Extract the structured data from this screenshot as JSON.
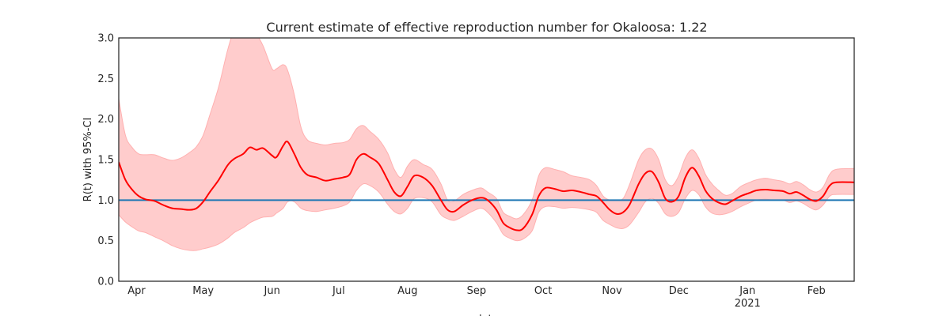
{
  "chart_data": {
    "type": "line",
    "title": "Current estimate of effective reproduction number for Okaloosa: 1.22",
    "ylabel": "R(t) with 95%-CI",
    "xlabel": "date",
    "ylim": [
      0,
      3.0
    ],
    "xlim": [
      "2020-03-24",
      "2021-02-18"
    ],
    "y_ticks": [
      {
        "value": 0.0,
        "label": "0.0"
      },
      {
        "value": 0.5,
        "label": "0.5"
      },
      {
        "value": 1.0,
        "label": "1.0"
      },
      {
        "value": 1.5,
        "label": "1.5"
      },
      {
        "value": 2.0,
        "label": "2.0"
      },
      {
        "value": 2.5,
        "label": "2.5"
      },
      {
        "value": 3.0,
        "label": "3.0"
      }
    ],
    "x_ticks": [
      {
        "date": "2020-04-01",
        "label": "Apr",
        "sublabel": ""
      },
      {
        "date": "2020-05-01",
        "label": "May",
        "sublabel": ""
      },
      {
        "date": "2020-06-01",
        "label": "Jun",
        "sublabel": ""
      },
      {
        "date": "2020-07-01",
        "label": "Jul",
        "sublabel": ""
      },
      {
        "date": "2020-08-01",
        "label": "Aug",
        "sublabel": ""
      },
      {
        "date": "2020-09-01",
        "label": "Sep",
        "sublabel": ""
      },
      {
        "date": "2020-10-01",
        "label": "Oct",
        "sublabel": ""
      },
      {
        "date": "2020-11-01",
        "label": "Nov",
        "sublabel": ""
      },
      {
        "date": "2020-12-01",
        "label": "Dec",
        "sublabel": ""
      },
      {
        "date": "2021-01-01",
        "label": "Jan",
        "sublabel": "2021"
      },
      {
        "date": "2021-02-01",
        "label": "Feb",
        "sublabel": ""
      }
    ],
    "reference_line": {
      "y": 1.0,
      "color": "#1f77b4"
    },
    "colors": {
      "line": "#ff0000",
      "band": "#ff9999",
      "band_edge": "#ffb0b0",
      "axes": "#262626"
    },
    "series": [
      {
        "name": "R(t)",
        "points": [
          [
            "2020-03-24",
            1.47,
            0.82,
            2.25
          ],
          [
            "2020-03-27",
            1.25,
            0.73,
            1.8
          ],
          [
            "2020-03-30",
            1.13,
            0.67,
            1.65
          ],
          [
            "2020-04-02",
            1.05,
            0.62,
            1.57
          ],
          [
            "2020-04-05",
            1.01,
            0.6,
            1.56
          ],
          [
            "2020-04-09",
            0.99,
            0.55,
            1.56
          ],
          [
            "2020-04-13",
            0.94,
            0.5,
            1.52
          ],
          [
            "2020-04-17",
            0.9,
            0.44,
            1.49
          ],
          [
            "2020-04-21",
            0.89,
            0.4,
            1.52
          ],
          [
            "2020-04-25",
            0.88,
            0.38,
            1.59
          ],
          [
            "2020-04-28",
            0.9,
            0.38,
            1.66
          ],
          [
            "2020-05-01",
            0.98,
            0.4,
            1.8
          ],
          [
            "2020-05-04",
            1.1,
            0.42,
            2.05
          ],
          [
            "2020-05-08",
            1.25,
            0.46,
            2.4
          ],
          [
            "2020-05-12",
            1.43,
            0.53,
            2.85
          ],
          [
            "2020-05-15",
            1.51,
            0.6,
            3.1
          ],
          [
            "2020-05-19",
            1.57,
            0.66,
            3.25
          ],
          [
            "2020-05-22",
            1.65,
            0.72,
            3.2
          ],
          [
            "2020-05-25",
            1.62,
            0.76,
            3.05
          ],
          [
            "2020-05-28",
            1.64,
            0.79,
            2.9
          ],
          [
            "2020-06-01",
            1.55,
            0.8,
            2.62
          ],
          [
            "2020-06-03",
            1.53,
            0.84,
            2.62
          ],
          [
            "2020-06-06",
            1.67,
            0.9,
            2.67
          ],
          [
            "2020-06-08",
            1.72,
            0.98,
            2.6
          ],
          [
            "2020-06-11",
            1.57,
            0.98,
            2.3
          ],
          [
            "2020-06-14",
            1.4,
            0.9,
            1.9
          ],
          [
            "2020-06-17",
            1.31,
            0.87,
            1.74
          ],
          [
            "2020-06-21",
            1.28,
            0.86,
            1.7
          ],
          [
            "2020-06-25",
            1.24,
            0.88,
            1.68
          ],
          [
            "2020-06-29",
            1.26,
            0.9,
            1.7
          ],
          [
            "2020-07-03",
            1.28,
            0.93,
            1.71
          ],
          [
            "2020-07-06",
            1.32,
            0.98,
            1.75
          ],
          [
            "2020-07-09",
            1.5,
            1.12,
            1.88
          ],
          [
            "2020-07-12",
            1.57,
            1.2,
            1.92
          ],
          [
            "2020-07-15",
            1.53,
            1.18,
            1.85
          ],
          [
            "2020-07-19",
            1.45,
            1.1,
            1.75
          ],
          [
            "2020-07-23",
            1.25,
            0.95,
            1.58
          ],
          [
            "2020-07-26",
            1.1,
            0.86,
            1.38
          ],
          [
            "2020-07-29",
            1.05,
            0.83,
            1.28
          ],
          [
            "2020-08-01",
            1.17,
            0.9,
            1.42
          ],
          [
            "2020-08-04",
            1.3,
            1.02,
            1.5
          ],
          [
            "2020-08-08",
            1.28,
            1.03,
            1.44
          ],
          [
            "2020-08-12",
            1.18,
            0.98,
            1.38
          ],
          [
            "2020-08-16",
            1.0,
            0.82,
            1.2
          ],
          [
            "2020-08-19",
            0.88,
            0.77,
            1.0
          ],
          [
            "2020-08-22",
            0.86,
            0.75,
            0.99
          ],
          [
            "2020-08-26",
            0.94,
            0.8,
            1.07
          ],
          [
            "2020-08-30",
            1.0,
            0.86,
            1.12
          ],
          [
            "2020-09-03",
            1.03,
            0.9,
            1.15
          ],
          [
            "2020-09-06",
            1.0,
            0.85,
            1.1
          ],
          [
            "2020-09-10",
            0.88,
            0.72,
            1.02
          ],
          [
            "2020-09-13",
            0.72,
            0.58,
            0.85
          ],
          [
            "2020-09-16",
            0.66,
            0.53,
            0.8
          ],
          [
            "2020-09-19",
            0.63,
            0.5,
            0.77
          ],
          [
            "2020-09-22",
            0.65,
            0.52,
            0.82
          ],
          [
            "2020-09-26",
            0.82,
            0.62,
            1.0
          ],
          [
            "2020-09-29",
            1.05,
            0.85,
            1.3
          ],
          [
            "2020-10-02",
            1.15,
            0.92,
            1.4
          ],
          [
            "2020-10-06",
            1.14,
            0.92,
            1.38
          ],
          [
            "2020-10-10",
            1.11,
            0.9,
            1.35
          ],
          [
            "2020-10-14",
            1.12,
            0.91,
            1.3
          ],
          [
            "2020-10-18",
            1.1,
            0.9,
            1.28
          ],
          [
            "2020-10-22",
            1.07,
            0.88,
            1.25
          ],
          [
            "2020-10-25",
            1.05,
            0.85,
            1.18
          ],
          [
            "2020-10-28",
            0.97,
            0.75,
            1.05
          ],
          [
            "2020-10-31",
            0.88,
            0.7,
            1.0
          ],
          [
            "2020-11-03",
            0.83,
            0.66,
            1.0
          ],
          [
            "2020-11-06",
            0.85,
            0.65,
            1.02
          ],
          [
            "2020-11-09",
            0.95,
            0.7,
            1.2
          ],
          [
            "2020-11-13",
            1.2,
            0.85,
            1.5
          ],
          [
            "2020-11-16",
            1.33,
            0.98,
            1.62
          ],
          [
            "2020-11-19",
            1.35,
            1.02,
            1.63
          ],
          [
            "2020-11-22",
            1.22,
            0.96,
            1.5
          ],
          [
            "2020-11-25",
            1.02,
            0.83,
            1.25
          ],
          [
            "2020-11-28",
            0.98,
            0.8,
            1.18
          ],
          [
            "2020-12-01",
            1.05,
            0.85,
            1.3
          ],
          [
            "2020-12-04",
            1.28,
            1.02,
            1.52
          ],
          [
            "2020-12-07",
            1.4,
            1.12,
            1.62
          ],
          [
            "2020-12-10",
            1.3,
            1.07,
            1.52
          ],
          [
            "2020-12-13",
            1.12,
            0.92,
            1.32
          ],
          [
            "2020-12-16",
            1.02,
            0.84,
            1.2
          ],
          [
            "2020-12-19",
            0.97,
            0.82,
            1.12
          ],
          [
            "2020-12-22",
            0.95,
            0.83,
            1.06
          ],
          [
            "2020-12-25",
            0.99,
            0.86,
            1.08
          ],
          [
            "2020-12-29",
            1.05,
            0.92,
            1.17
          ],
          [
            "2021-01-02",
            1.09,
            0.97,
            1.22
          ],
          [
            "2021-01-05",
            1.12,
            1.0,
            1.25
          ],
          [
            "2021-01-09",
            1.13,
            1.01,
            1.27
          ],
          [
            "2021-01-13",
            1.12,
            1.0,
            1.25
          ],
          [
            "2021-01-17",
            1.11,
            1.0,
            1.23
          ],
          [
            "2021-01-20",
            1.08,
            0.97,
            1.2
          ],
          [
            "2021-01-23",
            1.1,
            0.99,
            1.23
          ],
          [
            "2021-01-26",
            1.06,
            0.96,
            1.19
          ],
          [
            "2021-01-29",
            1.01,
            0.91,
            1.13
          ],
          [
            "2021-02-01",
            0.99,
            0.88,
            1.1
          ],
          [
            "2021-02-04",
            1.05,
            0.94,
            1.16
          ],
          [
            "2021-02-07",
            1.18,
            1.05,
            1.32
          ],
          [
            "2021-02-10",
            1.22,
            1.07,
            1.38
          ],
          [
            "2021-02-18",
            1.22,
            1.07,
            1.39
          ]
        ]
      }
    ]
  }
}
